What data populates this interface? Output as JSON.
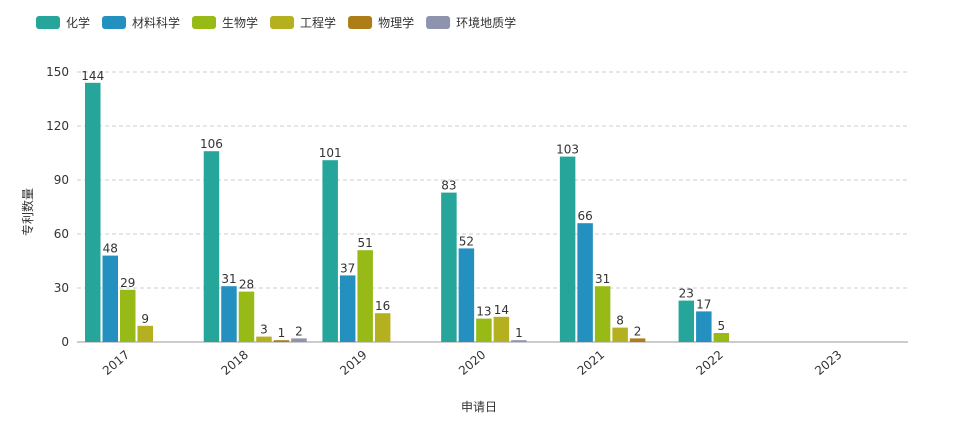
{
  "chart_data": {
    "type": "bar",
    "xlabel": "申请日",
    "ylabel": "专利数量",
    "ylim": [
      0,
      150
    ],
    "yticks": [
      0,
      30,
      60,
      90,
      120,
      150
    ],
    "grid": "horizontal-dashed",
    "legend_position": "top-left",
    "categories": [
      "2017",
      "2018",
      "2019",
      "2020",
      "2021",
      "2022",
      "2023"
    ],
    "series": [
      {
        "name": "化学",
        "color": "#26a69a",
        "values": [
          144,
          106,
          101,
          83,
          103,
          23,
          null
        ]
      },
      {
        "name": "材料科学",
        "color": "#2390c0",
        "values": [
          48,
          31,
          37,
          52,
          66,
          17,
          null
        ]
      },
      {
        "name": "生物学",
        "color": "#97ba17",
        "values": [
          29,
          28,
          51,
          13,
          31,
          5,
          null
        ]
      },
      {
        "name": "工程学",
        "color": "#b5b020",
        "values": [
          9,
          3,
          16,
          14,
          8,
          null,
          null
        ]
      },
      {
        "name": "物理学",
        "color": "#ad7e18",
        "values": [
          null,
          1,
          null,
          null,
          2,
          null,
          null
        ]
      },
      {
        "name": "环境地质学",
        "color": "#8e94ad",
        "values": [
          null,
          2,
          null,
          1,
          null,
          null,
          null
        ]
      }
    ]
  }
}
